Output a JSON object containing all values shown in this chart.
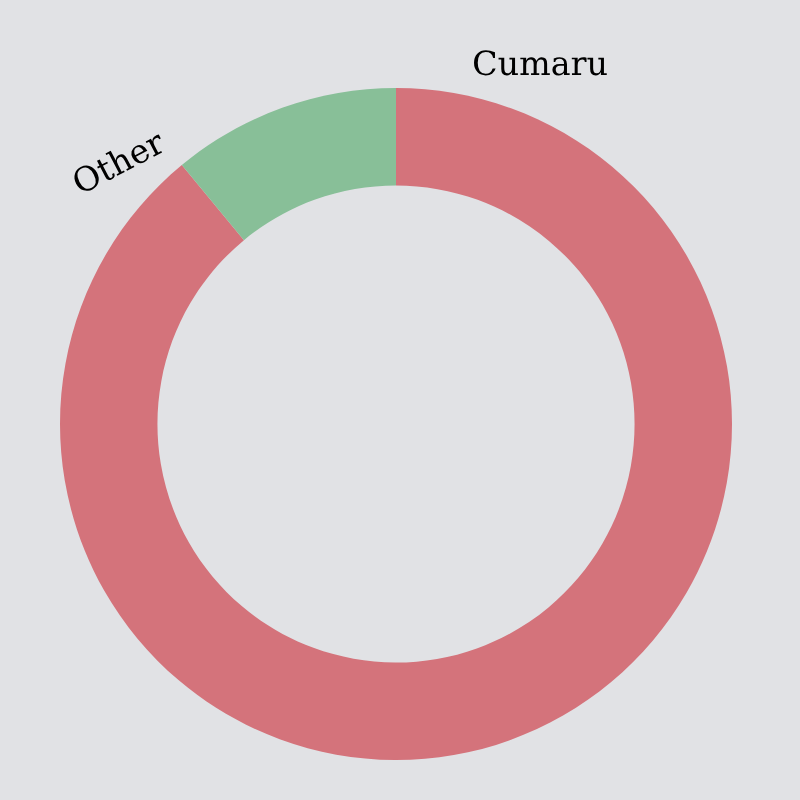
{
  "chart_data": {
    "type": "donut",
    "categories": [
      "Cumaru",
      "Other"
    ],
    "values": [
      89,
      11
    ],
    "colors": [
      "#d4737b",
      "#88bf98"
    ]
  }
}
